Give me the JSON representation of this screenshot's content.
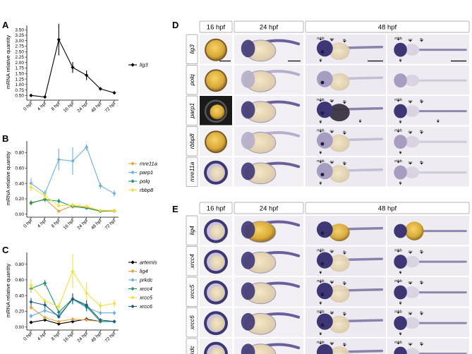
{
  "panels": {
    "A": "A",
    "B": "B",
    "C": "C",
    "D": "D",
    "E": "E"
  },
  "ylabel": "mRNA relative quantity",
  "timepoints": [
    "0 hpf",
    "4 hpf",
    "8 hpf",
    "16 hpf",
    "24 hpf",
    "48 hpf",
    "72 hpf"
  ],
  "chart_data": [
    {
      "panel": "A",
      "type": "line",
      "x": [
        "0 hpf",
        "4 hpf",
        "8 hpf",
        "16 hpf",
        "24 hpf",
        "48 hpf",
        "72 hpf"
      ],
      "ylabel": "mRNA relative quantity",
      "ylim": [
        0.35,
        3.7
      ],
      "yticks": [
        "0.50",
        "0.75",
        "1.00",
        "1.25",
        "1.50",
        "1.75",
        "2.00",
        "2.25",
        "2.50",
        "2.75",
        "3.00",
        "3.25",
        "3.50"
      ],
      "legend_position": "right",
      "series": [
        {
          "name": "lig3",
          "color": "#000000",
          "values": [
            0.5,
            0.43,
            3.05,
            1.78,
            1.42,
            0.8,
            0.62
          ],
          "errors": [
            0.03,
            0.05,
            0.72,
            0.25,
            0.22,
            0.08,
            0.05
          ]
        }
      ]
    },
    {
      "panel": "B",
      "type": "line",
      "x": [
        "0 hpf",
        "4 hpf",
        "8 hpf",
        "16 hpf",
        "24 hpf",
        "48 hpf",
        "72 hpf"
      ],
      "ylabel": "mRNA relative quantity",
      "ylim": [
        -0.02,
        0.95
      ],
      "yticks": [
        "0.00",
        "0.20",
        "0.40",
        "0.60",
        "0.80"
      ],
      "legend_position": "right",
      "series": [
        {
          "name": "mre11a",
          "color": "#e8a13a",
          "values": [
            0.14,
            0.2,
            0.04,
            0.11,
            0.09,
            0.04,
            0.04
          ],
          "errors": [
            0.02,
            0.03,
            0.01,
            0.02,
            0.01,
            0.01,
            0.01
          ]
        },
        {
          "name": "parp1",
          "color": "#6ab0e3",
          "values": [
            0.4,
            0.27,
            0.71,
            0.69,
            0.87,
            0.37,
            0.27
          ],
          "errors": [
            0.07,
            0.04,
            0.14,
            0.18,
            0.04,
            0.04,
            0.04
          ]
        },
        {
          "name": "polq",
          "color": "#1d9566",
          "values": [
            0.15,
            0.19,
            0.17,
            0.1,
            0.08,
            0.04,
            0.05
          ],
          "errors": [
            0.03,
            0.03,
            0.03,
            0.02,
            0.01,
            0.01,
            0.01
          ]
        },
        {
          "name": "rbbp8",
          "color": "#f2e13c",
          "values": [
            0.35,
            0.24,
            0.11,
            0.12,
            0.1,
            0.05,
            0.05
          ],
          "errors": [
            0.05,
            0.04,
            0.02,
            0.03,
            0.02,
            0.01,
            0.01
          ]
        }
      ]
    },
    {
      "panel": "C",
      "type": "line",
      "x": [
        "0 hpf",
        "4 hpf",
        "8 hpf",
        "16 hpf",
        "24 hpf",
        "48 hpf",
        "72 hpf"
      ],
      "ylabel": "mRNA relative quantity",
      "ylim": [
        -0.02,
        0.95
      ],
      "yticks": [
        "0.00",
        "0.20",
        "0.40",
        "0.60",
        "0.80"
      ],
      "legend_position": "right",
      "series": [
        {
          "name": "artemis",
          "color": "#000000",
          "values": [
            0.06,
            0.09,
            0.04,
            0.07,
            0.1,
            0.07,
            0.07
          ],
          "errors": [
            0.01,
            0.01,
            0.01,
            0.01,
            0.02,
            0.01,
            0.01
          ]
        },
        {
          "name": "lig4",
          "color": "#e8a13a",
          "values": [
            0.25,
            0.12,
            0.07,
            0.1,
            0.09,
            0.07,
            0.07
          ],
          "errors": [
            0.03,
            0.02,
            0.01,
            0.02,
            0.02,
            0.01,
            0.01
          ]
        },
        {
          "name": "prkdc",
          "color": "#6ab0e3",
          "values": [
            0.14,
            0.21,
            0.15,
            0.35,
            0.25,
            0.18,
            0.18
          ],
          "errors": [
            0.03,
            0.03,
            0.03,
            0.06,
            0.05,
            0.03,
            0.03
          ]
        },
        {
          "name": "xrcc4",
          "color": "#1d9566",
          "values": [
            0.49,
            0.56,
            0.19,
            0.36,
            0.26,
            0.07,
            0.07
          ],
          "errors": [
            0.05,
            0.04,
            0.03,
            0.07,
            0.06,
            0.01,
            0.01
          ]
        },
        {
          "name": "xrcc5",
          "color": "#f2e13c",
          "values": [
            0.53,
            0.33,
            0.26,
            0.71,
            0.43,
            0.27,
            0.3
          ],
          "errors": [
            0.08,
            0.04,
            0.05,
            0.22,
            0.14,
            0.05,
            0.05
          ]
        },
        {
          "name": "xrcc6",
          "color": "#1f5c8c",
          "values": [
            0.32,
            0.28,
            0.13,
            0.36,
            0.28,
            0.09,
            0.07
          ],
          "errors": [
            0.05,
            0.04,
            0.02,
            0.07,
            0.06,
            0.01,
            0.01
          ]
        }
      ]
    }
  ],
  "panelD": {
    "stages": [
      "16 hpf",
      "24 hpf",
      "48 hpf"
    ],
    "genes": [
      "lig3",
      "polq",
      "parp1",
      "rbbp8",
      "mre11a"
    ]
  },
  "panelE": {
    "stages": [
      "16 hpf",
      "24 hpf",
      "48 hpf"
    ],
    "genes": [
      "lig4",
      "xrcc4",
      "xrcc5",
      "xrcc6",
      "prkdc"
    ]
  },
  "annotations": {
    "mhb": "mhb",
    "ov": "ov",
    "fb": "fb",
    "e": "e",
    "g": "g"
  },
  "colors": {
    "stain": "#3e3775",
    "embryo_bg": "#ebe8ef",
    "yolk": "#e9c24c"
  }
}
